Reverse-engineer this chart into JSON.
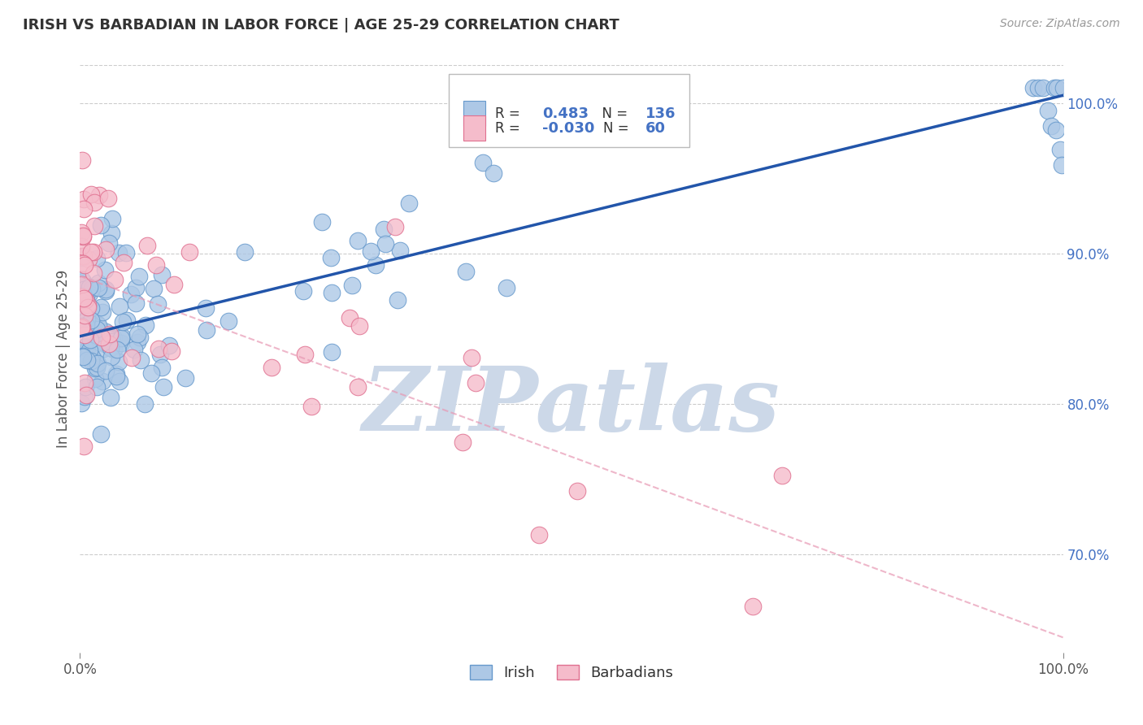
{
  "title": "IRISH VS BARBADIAN IN LABOR FORCE | AGE 25-29 CORRELATION CHART",
  "source_text": "Source: ZipAtlas.com",
  "ylabel": "In Labor Force | Age 25-29",
  "xlim": [
    0.0,
    1.0
  ],
  "ylim": [
    0.635,
    1.025
  ],
  "y_tick_right": [
    0.7,
    0.8,
    0.9,
    1.0
  ],
  "y_tick_right_labels": [
    "70.0%",
    "80.0%",
    "90.0%",
    "100.0%"
  ],
  "irish_R": 0.483,
  "irish_N": 136,
  "barbadian_R": -0.03,
  "barbadian_N": 60,
  "irish_color": "#adc8e6",
  "irish_edge_color": "#6699cc",
  "barbadian_color": "#f5bccb",
  "barbadian_edge_color": "#e07090",
  "irish_line_color": "#2255aa",
  "barbadian_line_color": "#e899b4",
  "grid_color": "#cccccc",
  "watermark_color": "#ccd8e8",
  "legend_irish_label": "Irish",
  "legend_barbadian_label": "Barbadians",
  "irish_line_start_x": 0.0,
  "irish_line_start_y": 0.845,
  "irish_line_end_x": 1.0,
  "irish_line_end_y": 1.005,
  "barb_line_start_x": 0.0,
  "barb_line_start_y": 0.885,
  "barb_line_end_x": 1.0,
  "barb_line_end_y": 0.645
}
